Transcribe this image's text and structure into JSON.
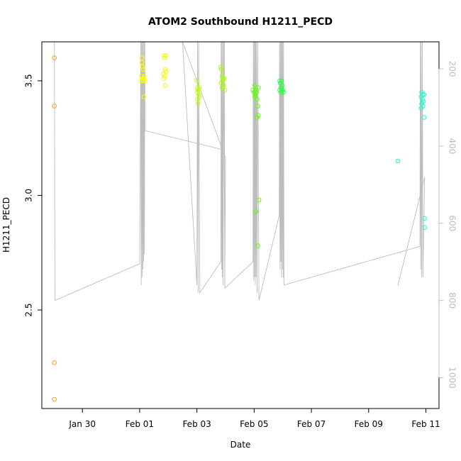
{
  "chart_data": {
    "type": "scatter",
    "title": "ATOM2 Southbound H1211_PECD",
    "xlabel": "Date",
    "ylabel": "H1211_PECD",
    "xlim": [
      "2016-01-28T14:00",
      "2016-02-11T11:00"
    ],
    "ylim": [
      2.07,
      3.67
    ],
    "x_ticks": [
      {
        "x": "2016-01-30",
        "label": "Jan 30"
      },
      {
        "x": "2016-02-01",
        "label": "Feb 01"
      },
      {
        "x": "2016-02-03",
        "label": "Feb 03"
      },
      {
        "x": "2016-02-05",
        "label": "Feb 05"
      },
      {
        "x": "2016-02-07",
        "label": "Feb 07"
      },
      {
        "x": "2016-02-09",
        "label": "Feb 09"
      },
      {
        "x": "2016-02-11",
        "label": "Feb 11"
      }
    ],
    "y_ticks": [
      2.5,
      3.0,
      3.5
    ],
    "y2_lim_reversed": [
      130,
      1080
    ],
    "y2_ticks": [
      200,
      400,
      600,
      800,
      1000
    ],
    "points": [
      {
        "t": "2016-01-29T00:30",
        "y": 3.6,
        "c": "#ff9a1a"
      },
      {
        "t": "2016-01-29T00:30",
        "y": 3.39,
        "c": "#ff9a1a"
      },
      {
        "t": "2016-01-29T00:30",
        "y": 2.27,
        "c": "#ff9a1a"
      },
      {
        "t": "2016-01-29T00:30",
        "y": 2.11,
        "c": "#ff9a1a"
      },
      {
        "t": "2016-02-01T02:00",
        "y": 3.6,
        "c": "#ffff00"
      },
      {
        "t": "2016-02-01T02:00",
        "y": 3.58,
        "c": "#ffff00"
      },
      {
        "t": "2016-02-01T02:30",
        "y": 3.56,
        "c": "#ffff00"
      },
      {
        "t": "2016-02-01T03:00",
        "y": 3.55,
        "c": "#ffff00"
      },
      {
        "t": "2016-02-01T01:30",
        "y": 3.52,
        "c": "#ffff00"
      },
      {
        "t": "2016-02-01T02:30",
        "y": 3.51,
        "c": "#ffff00"
      },
      {
        "t": "2016-02-01T03:30",
        "y": 3.51,
        "c": "#ffff00"
      },
      {
        "t": "2016-02-01T04:00",
        "y": 3.52,
        "c": "#ffff00"
      },
      {
        "t": "2016-02-01T01:30",
        "y": 3.5,
        "c": "#ffff00"
      },
      {
        "t": "2016-02-01T03:00",
        "y": 3.5,
        "c": "#ffff00"
      },
      {
        "t": "2016-02-01T04:30",
        "y": 3.5,
        "c": "#ffff00"
      },
      {
        "t": "2016-02-01T03:30",
        "y": 3.43,
        "c": "#ffff00"
      },
      {
        "t": "2016-02-01T20:30",
        "y": 3.61,
        "c": "#eaff00"
      },
      {
        "t": "2016-02-01T22:00",
        "y": 3.61,
        "c": "#eaff00"
      },
      {
        "t": "2016-02-01T21:00",
        "y": 3.6,
        "c": "#eaff00"
      },
      {
        "t": "2016-02-01T21:30",
        "y": 3.55,
        "c": "#eaff00"
      },
      {
        "t": "2016-02-01T22:00",
        "y": 3.54,
        "c": "#eaff00"
      },
      {
        "t": "2016-02-01T20:00",
        "y": 3.53,
        "c": "#eaff00"
      },
      {
        "t": "2016-02-01T21:00",
        "y": 3.52,
        "c": "#eaff00"
      },
      {
        "t": "2016-02-01T20:30",
        "y": 3.51,
        "c": "#eaff00"
      },
      {
        "t": "2016-02-01T21:30",
        "y": 3.48,
        "c": "#eaff00"
      },
      {
        "t": "2016-02-03T00:00",
        "y": 3.5,
        "c": "#bfff00"
      },
      {
        "t": "2016-02-03T00:30",
        "y": 3.47,
        "c": "#bfff00"
      },
      {
        "t": "2016-02-03T02:00",
        "y": 3.47,
        "c": "#bfff00"
      },
      {
        "t": "2016-02-03T01:00",
        "y": 3.46,
        "c": "#bfff00"
      },
      {
        "t": "2016-02-03T00:30",
        "y": 3.45,
        "c": "#bfff00"
      },
      {
        "t": "2016-02-03T01:30",
        "y": 3.44,
        "c": "#bfff00"
      },
      {
        "t": "2016-02-03T02:00",
        "y": 3.43,
        "c": "#bfff00"
      },
      {
        "t": "2016-02-03T00:30",
        "y": 3.42,
        "c": "#bfff00"
      },
      {
        "t": "2016-02-03T01:00",
        "y": 3.4,
        "c": "#bfff00"
      },
      {
        "t": "2016-02-03T20:00",
        "y": 3.56,
        "c": "#a6ff00"
      },
      {
        "t": "2016-02-03T20:30",
        "y": 3.55,
        "c": "#a6ff00"
      },
      {
        "t": "2016-02-03T21:00",
        "y": 3.52,
        "c": "#a6ff00"
      },
      {
        "t": "2016-02-03T22:00",
        "y": 3.51,
        "c": "#a6ff00"
      },
      {
        "t": "2016-02-03T23:00",
        "y": 3.51,
        "c": "#a6ff00"
      },
      {
        "t": "2016-02-03T21:30",
        "y": 3.5,
        "c": "#a6ff00"
      },
      {
        "t": "2016-02-03T20:30",
        "y": 3.49,
        "c": "#a6ff00"
      },
      {
        "t": "2016-02-03T22:30",
        "y": 3.48,
        "c": "#a6ff00"
      },
      {
        "t": "2016-02-03T21:00",
        "y": 3.47,
        "c": "#a6ff00"
      },
      {
        "t": "2016-02-03T23:30",
        "y": 3.46,
        "c": "#a6ff00"
      },
      {
        "t": "2016-02-05T00:30",
        "y": 3.48,
        "c": "#5cff00"
      },
      {
        "t": "2016-02-05T03:30",
        "y": 3.47,
        "c": "#5cff00"
      },
      {
        "t": "2016-02-04T23:00",
        "y": 3.46,
        "c": "#5cff00"
      },
      {
        "t": "2016-02-05T01:30",
        "y": 3.46,
        "c": "#5cff00"
      },
      {
        "t": "2016-02-05T00:00",
        "y": 3.45,
        "c": "#5cff00"
      },
      {
        "t": "2016-02-05T02:00",
        "y": 3.45,
        "c": "#5cff00"
      },
      {
        "t": "2016-02-05T01:00",
        "y": 3.44,
        "c": "#5cff00"
      },
      {
        "t": "2016-02-05T00:30",
        "y": 3.43,
        "c": "#5cff00"
      },
      {
        "t": "2016-02-05T02:30",
        "y": 3.42,
        "c": "#5cff00"
      },
      {
        "t": "2016-02-05T03:00",
        "y": 3.39,
        "c": "#5cff00"
      },
      {
        "t": "2016-02-05T03:30",
        "y": 3.35,
        "c": "#5cff00"
      },
      {
        "t": "2016-02-05T02:30",
        "y": 3.34,
        "c": "#5cff00"
      },
      {
        "t": "2016-02-05T04:00",
        "y": 2.98,
        "c": "#5cff00"
      },
      {
        "t": "2016-02-05T01:30",
        "y": 2.93,
        "c": "#5cff00"
      },
      {
        "t": "2016-02-05T03:00",
        "y": 2.78,
        "c": "#5cff00"
      },
      {
        "t": "2016-02-05T21:30",
        "y": 3.5,
        "c": "#2bff3d"
      },
      {
        "t": "2016-02-05T23:00",
        "y": 3.5,
        "c": "#2bff3d"
      },
      {
        "t": "2016-02-05T22:00",
        "y": 3.49,
        "c": "#2bff3d"
      },
      {
        "t": "2016-02-05T23:30",
        "y": 3.48,
        "c": "#2bff3d"
      },
      {
        "t": "2016-02-05T22:30",
        "y": 3.47,
        "c": "#2bff3d"
      },
      {
        "t": "2016-02-05T23:00",
        "y": 3.46,
        "c": "#2bff3d"
      },
      {
        "t": "2016-02-06T00:00",
        "y": 3.46,
        "c": "#2bff3d"
      },
      {
        "t": "2016-02-05T21:30",
        "y": 3.46,
        "c": "#2bff3d"
      },
      {
        "t": "2016-02-05T22:30",
        "y": 3.45,
        "c": "#2bff3d"
      },
      {
        "t": "2016-02-06T00:30",
        "y": 3.45,
        "c": "#2bff3d"
      },
      {
        "t": "2016-02-10T00:30",
        "y": 3.15,
        "c": "#1affa6"
      },
      {
        "t": "2016-02-10T20:30",
        "y": 3.45,
        "c": "#1affcc"
      },
      {
        "t": "2016-02-10T21:30",
        "y": 3.44,
        "c": "#1affcc"
      },
      {
        "t": "2016-02-10T22:30",
        "y": 3.44,
        "c": "#1affcc"
      },
      {
        "t": "2016-02-10T20:00",
        "y": 3.43,
        "c": "#1affcc"
      },
      {
        "t": "2016-02-10T21:00",
        "y": 3.42,
        "c": "#1affcc"
      },
      {
        "t": "2016-02-10T22:00",
        "y": 3.41,
        "c": "#1affcc"
      },
      {
        "t": "2016-02-10T20:30",
        "y": 3.4,
        "c": "#1affcc"
      },
      {
        "t": "2016-02-10T21:30",
        "y": 3.39,
        "c": "#1affcc"
      },
      {
        "t": "2016-02-10T20:00",
        "y": 3.38,
        "c": "#1affcc"
      },
      {
        "t": "2016-02-10T22:30",
        "y": 3.34,
        "c": "#1affcc"
      },
      {
        "t": "2016-02-10T23:00",
        "y": 2.9,
        "c": "#1affcc"
      },
      {
        "t": "2016-02-10T23:00",
        "y": 2.86,
        "c": "#1affcc"
      }
    ],
    "altitude_line": {
      "color": "#bdbdbd",
      "points": [
        [
          "2016-01-29T00:30",
          130
        ],
        [
          "2016-01-29T01:00",
          800
        ],
        [
          "2016-02-01T00:00",
          705
        ],
        [
          "2016-02-01T01:00",
          130
        ],
        [
          "2016-02-01T01:20",
          760
        ],
        [
          "2016-02-01T01:40",
          130
        ],
        [
          "2016-02-01T02:00",
          740
        ],
        [
          "2016-02-01T02:20",
          130
        ],
        [
          "2016-02-01T02:40",
          720
        ],
        [
          "2016-02-01T03:00",
          130
        ],
        [
          "2016-02-01T03:20",
          700
        ],
        [
          "2016-02-01T03:40",
          130
        ],
        [
          "2016-02-01T04:00",
          680
        ],
        [
          "2016-02-01T04:20",
          130
        ],
        [
          "2016-02-01T04:30",
          360
        ],
        [
          "2016-02-03T20:00",
          408
        ],
        [
          "2016-02-03T21:00",
          380
        ],
        [
          "2016-02-03T22:00",
          420
        ],
        [
          "2016-02-03T23:00",
          130
        ],
        [
          "2016-02-03T23:20",
          760
        ],
        [
          "2016-02-04T00:00",
          430
        ],
        [
          "2016-02-02T12:00",
          130
        ],
        [
          "2016-02-03T00:00",
          760
        ],
        [
          "2016-02-03T00:30",
          130
        ],
        [
          "2016-02-03T01:00",
          780
        ],
        [
          "2016-02-03T01:30",
          130
        ],
        [
          "2016-02-03T02:30",
          780
        ],
        [
          "2016-02-03T20:00",
          700
        ],
        [
          "2016-02-03T20:20",
          130
        ],
        [
          "2016-02-03T20:40",
          720
        ],
        [
          "2016-02-03T21:00",
          130
        ],
        [
          "2016-02-03T21:20",
          740
        ],
        [
          "2016-02-03T21:40",
          130
        ],
        [
          "2016-02-03T22:00",
          760
        ],
        [
          "2016-02-03T22:30",
          130
        ],
        [
          "2016-02-03T23:30",
          768
        ],
        [
          "2016-02-04T23:00",
          700
        ],
        [
          "2016-02-04T23:20",
          130
        ],
        [
          "2016-02-04T23:40",
          750
        ],
        [
          "2016-02-05T00:00",
          130
        ],
        [
          "2016-02-05T00:20",
          740
        ],
        [
          "2016-02-05T00:40",
          130
        ],
        [
          "2016-02-05T01:00",
          760
        ],
        [
          "2016-02-05T01:20",
          130
        ],
        [
          "2016-02-05T01:40",
          740
        ],
        [
          "2016-02-05T02:00",
          130
        ],
        [
          "2016-02-05T02:30",
          780
        ],
        [
          "2016-02-05T03:00",
          130
        ],
        [
          "2016-02-05T04:00",
          800
        ],
        [
          "2016-02-05T21:00",
          580
        ],
        [
          "2016-02-05T21:20",
          130
        ],
        [
          "2016-02-05T21:40",
          720
        ],
        [
          "2016-02-05T22:00",
          130
        ],
        [
          "2016-02-05T22:20",
          700
        ],
        [
          "2016-02-05T22:40",
          130
        ],
        [
          "2016-02-05T23:00",
          740
        ],
        [
          "2016-02-05T23:20",
          130
        ],
        [
          "2016-02-05T23:40",
          720
        ],
        [
          "2016-02-06T00:00",
          130
        ],
        [
          "2016-02-06T00:20",
          740
        ],
        [
          "2016-02-06T00:40",
          130
        ],
        [
          "2016-02-06T01:00",
          760
        ],
        [
          "2016-02-10T19:00",
          660
        ],
        [
          "2016-02-10T19:20",
          130
        ],
        [
          "2016-02-10T19:40",
          720
        ],
        [
          "2016-02-10T20:00",
          130
        ],
        [
          "2016-02-10T20:30",
          740
        ],
        [
          "2016-02-10T21:00",
          130
        ],
        [
          "2016-02-10T21:30",
          740
        ],
        [
          "2016-02-10T23:00",
          480
        ],
        [
          "2016-02-10T00:30",
          762
        ]
      ]
    }
  }
}
